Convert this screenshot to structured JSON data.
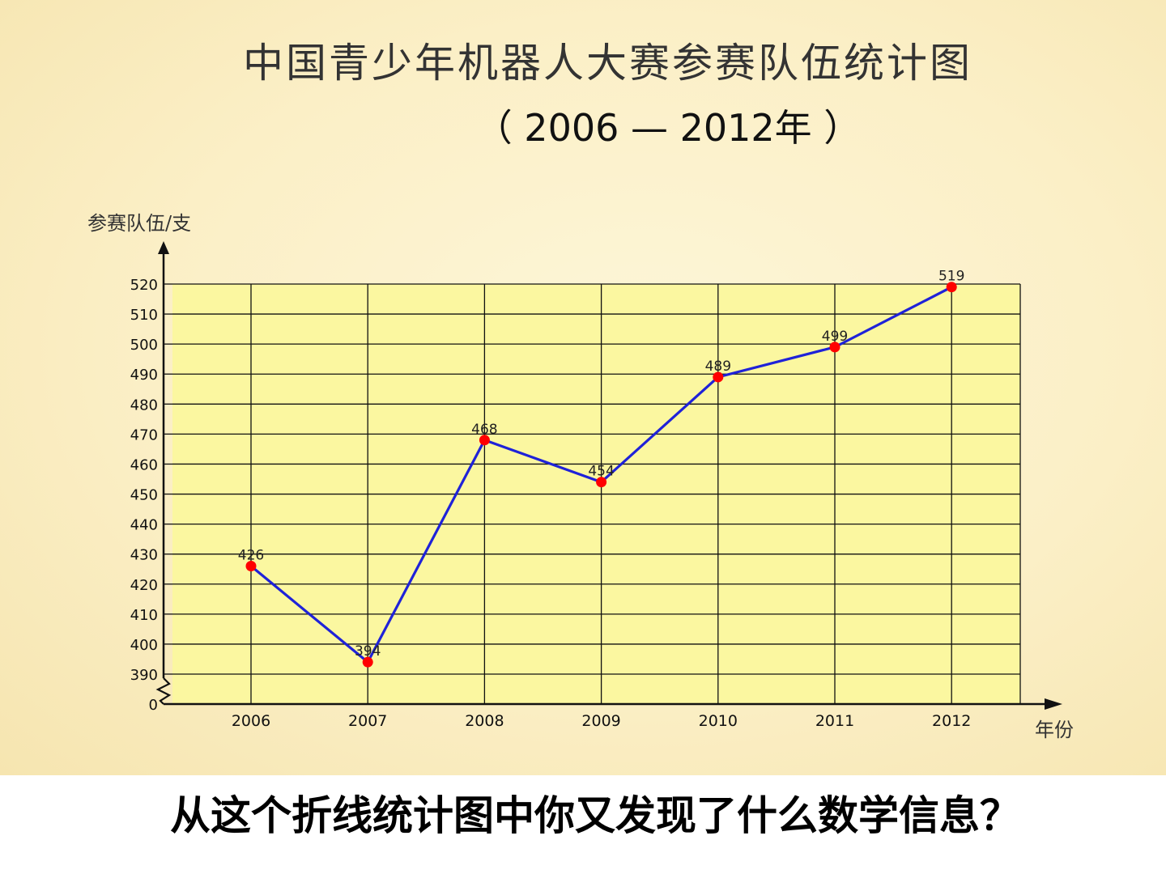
{
  "slide": {
    "title": "中国青少年机器人大赛参赛队伍统计图",
    "subtitle": "（ 2006 — 2012年 ）",
    "question": "从这个折线统计图中你又发现了什么数学信息？"
  },
  "chart_data": {
    "type": "line",
    "title": "中国青少年机器人大赛参赛队伍统计图",
    "subtitle": "（ 2006 — 2012年 ）",
    "xlabel": "年份",
    "ylabel": "参赛队伍/支",
    "categories": [
      "2006",
      "2007",
      "2008",
      "2009",
      "2010",
      "2011",
      "2012"
    ],
    "series": [
      {
        "values": [
          426,
          394,
          468,
          454,
          489,
          499,
          519
        ],
        "color": "#1f22d8"
      }
    ],
    "data_labels": [
      "426",
      "394",
      "468",
      "454",
      "489",
      "499",
      "519"
    ],
    "yticks": [
      "0",
      "390",
      "400",
      "410",
      "420",
      "430",
      "440",
      "450",
      "460",
      "470",
      "480",
      "490",
      "500",
      "510",
      "520"
    ],
    "ylim": [
      380,
      520
    ],
    "y_axis_break": true,
    "grid": true,
    "colors": {
      "plot_background": "#fbf7a0",
      "grid": "#111111",
      "line": "#1f22d8",
      "marker": "#ff0000"
    }
  }
}
